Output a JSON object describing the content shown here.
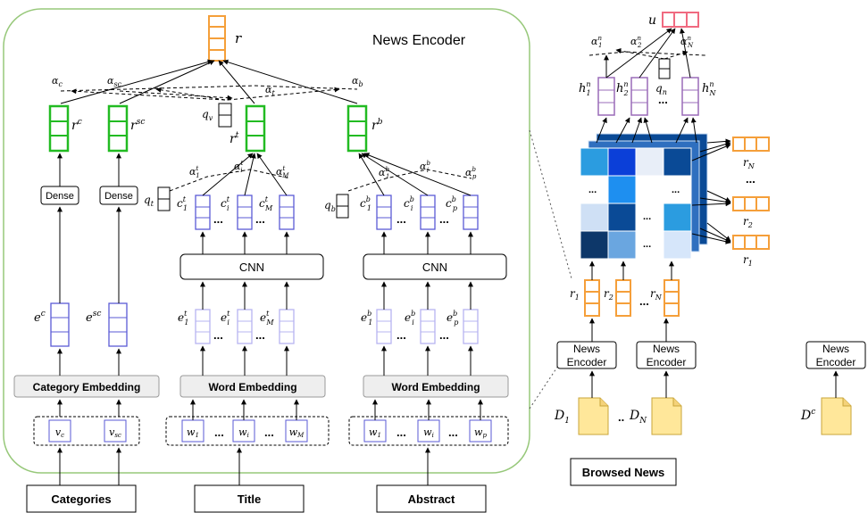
{
  "encoder": {
    "title": "News Encoder",
    "output": "r",
    "attn": {
      "ac": "α",
      "ac_sub": "c",
      "asc": "α",
      "asc_sub": "sc",
      "at": "α",
      "at_sub": "t",
      "ab": "α",
      "ab_sub": "b",
      "qv": "q",
      "qv_sub": "v"
    },
    "reps": {
      "rc": "r",
      "rc_sup": "c",
      "rsc": "r",
      "rsc_sup": "sc",
      "rt": "r",
      "rt_sup": "t",
      "rb": "r",
      "rb_sup": "b"
    },
    "dense": "Dense",
    "cnn": "CNN",
    "category_embedding": "Category Embedding",
    "word_embedding": "Word Embedding",
    "ec": "e",
    "ec_sup": "c",
    "esc": "e",
    "esc_sup": "sc",
    "ellipsis": "...",
    "inputs": {
      "categories": "Categories",
      "title": "Title",
      "abstract": "Abstract"
    }
  },
  "user": {
    "u": "u",
    "browsed_news": "Browsed News",
    "news_encoder": "News Encoder",
    "d1": "D",
    "d1_sub": "1",
    "dn": "D",
    "dn_sub": "N",
    "dc": "D",
    "dc_sup": "c",
    "r1": "r",
    "r1_sub": "1",
    "r2": "r",
    "r2_sub": "2",
    "rn": "r",
    "rn_sub": "N",
    "h1": "h",
    "hN": "h",
    "qn": "q",
    "qn_sub": "n",
    "ellipsis": "..."
  },
  "colors": {
    "orange": "#f59f3a",
    "green": "#22bb22",
    "blue": "#5a5ad6",
    "light_blue": "#b7b4f0",
    "purple": "#9a6bb8",
    "red": "#f06a80",
    "encoder_border": "#97c87a",
    "gray_box": "#eeeeee",
    "doc_fill": "#ffe79a"
  }
}
